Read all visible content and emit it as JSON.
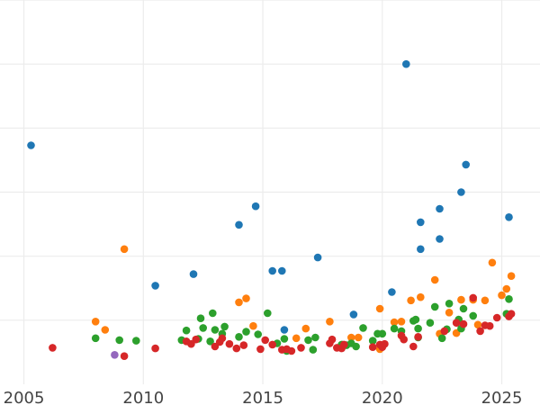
{
  "colors": {
    "blue": "#1f77b4",
    "orange": "#ff7f0e",
    "green": "#2ca02c",
    "red": "#d62728",
    "purple": "#9467bd",
    "grid": "#ececec",
    "tick_text": "#444444"
  },
  "chart_data": {
    "type": "scatter",
    "title": "",
    "xlabel": "",
    "ylabel": "",
    "xlim": [
      2004.0,
      2026.6
    ],
    "ylim": [
      0,
      6
    ],
    "x_ticks": [
      2005,
      2010,
      2015,
      2020,
      2025
    ],
    "x_tick_labels": [
      "2005",
      "2010",
      "2015",
      "2020",
      "2025"
    ],
    "y_ticks": [
      1,
      2,
      3,
      4,
      5,
      6
    ],
    "y_tick_labels": [],
    "grid": true,
    "legend": "none",
    "series": [
      {
        "color": "blue",
        "points": [
          [
            2005.3,
            3.73
          ],
          [
            2010.5,
            1.54
          ],
          [
            2012.1,
            1.72
          ],
          [
            2014.0,
            2.49
          ],
          [
            2014.7,
            2.78
          ],
          [
            2015.4,
            1.77
          ],
          [
            2015.8,
            1.77
          ],
          [
            2015.9,
            0.85
          ],
          [
            2017.3,
            1.98
          ],
          [
            2018.8,
            1.09
          ],
          [
            2020.4,
            1.44
          ],
          [
            2021.0,
            5.0
          ],
          [
            2021.6,
            2.11
          ],
          [
            2021.6,
            2.53
          ],
          [
            2022.4,
            2.27
          ],
          [
            2022.4,
            2.74
          ],
          [
            2023.3,
            3.0
          ],
          [
            2023.5,
            3.43
          ],
          [
            2025.3,
            2.61
          ]
        ]
      },
      {
        "color": "orange",
        "points": [
          [
            2008.0,
            0.98
          ],
          [
            2008.4,
            0.85
          ],
          [
            2009.2,
            2.11
          ],
          [
            2014.0,
            1.28
          ],
          [
            2014.3,
            1.34
          ],
          [
            2014.6,
            0.91
          ],
          [
            2016.4,
            0.72
          ],
          [
            2016.8,
            0.87
          ],
          [
            2017.8,
            0.98
          ],
          [
            2018.7,
            0.73
          ],
          [
            2019.0,
            0.73
          ],
          [
            2019.9,
            1.18
          ],
          [
            2020.5,
            0.97
          ],
          [
            2020.8,
            0.98
          ],
          [
            2021.2,
            1.31
          ],
          [
            2021.6,
            1.36
          ],
          [
            2022.2,
            1.63
          ],
          [
            2022.4,
            0.79
          ],
          [
            2022.8,
            1.12
          ],
          [
            2023.1,
            0.8
          ],
          [
            2023.3,
            1.32
          ],
          [
            2023.8,
            1.32
          ],
          [
            2024.0,
            0.93
          ],
          [
            2024.3,
            1.31
          ],
          [
            2024.6,
            1.9
          ],
          [
            2025.0,
            1.39
          ],
          [
            2025.2,
            1.49
          ],
          [
            2025.4,
            1.69
          ],
          [
            2019.9,
            0.55
          ]
        ]
      },
      {
        "color": "green",
        "points": [
          [
            2008.0,
            0.72
          ],
          [
            2009.0,
            0.69
          ],
          [
            2009.7,
            0.68
          ],
          [
            2011.6,
            0.69
          ],
          [
            2011.8,
            0.84
          ],
          [
            2012.3,
            0.71
          ],
          [
            2012.4,
            1.03
          ],
          [
            2012.5,
            0.88
          ],
          [
            2012.8,
            0.67
          ],
          [
            2012.9,
            1.11
          ],
          [
            2013.0,
            0.85
          ],
          [
            2013.3,
            0.79
          ],
          [
            2013.4,
            0.9
          ],
          [
            2014.0,
            0.74
          ],
          [
            2014.3,
            0.82
          ],
          [
            2014.8,
            0.78
          ],
          [
            2015.2,
            1.11
          ],
          [
            2015.6,
            0.64
          ],
          [
            2015.9,
            0.71
          ],
          [
            2016.0,
            0.52
          ],
          [
            2016.9,
            0.69
          ],
          [
            2017.2,
            0.73
          ],
          [
            2017.1,
            0.54
          ],
          [
            2018.3,
            0.62
          ],
          [
            2018.5,
            0.61
          ],
          [
            2018.7,
            0.64
          ],
          [
            2018.9,
            0.59
          ],
          [
            2019.2,
            0.88
          ],
          [
            2019.6,
            0.68
          ],
          [
            2019.8,
            0.79
          ],
          [
            2020.0,
            0.79
          ],
          [
            2020.5,
            0.87
          ],
          [
            2020.8,
            0.83
          ],
          [
            2021.3,
            0.99
          ],
          [
            2021.4,
            1.01
          ],
          [
            2021.5,
            0.87
          ],
          [
            2021.5,
            0.73
          ],
          [
            2022.0,
            0.96
          ],
          [
            2022.2,
            1.21
          ],
          [
            2022.5,
            0.72
          ],
          [
            2022.7,
            0.86
          ],
          [
            2022.8,
            1.26
          ],
          [
            2023.2,
            1.01
          ],
          [
            2023.3,
            0.87
          ],
          [
            2023.4,
            1.18
          ],
          [
            2023.8,
            1.07
          ],
          [
            2025.2,
            1.1
          ],
          [
            2025.3,
            1.33
          ]
        ]
      },
      {
        "color": "red",
        "points": [
          [
            2006.2,
            0.57
          ],
          [
            2009.2,
            0.44
          ],
          [
            2010.5,
            0.56
          ],
          [
            2011.8,
            0.67
          ],
          [
            2012.0,
            0.63
          ],
          [
            2012.2,
            0.7
          ],
          [
            2013.0,
            0.59
          ],
          [
            2013.2,
            0.66
          ],
          [
            2013.3,
            0.72
          ],
          [
            2013.6,
            0.63
          ],
          [
            2013.9,
            0.56
          ],
          [
            2014.2,
            0.61
          ],
          [
            2014.9,
            0.55
          ],
          [
            2015.1,
            0.69
          ],
          [
            2015.4,
            0.62
          ],
          [
            2015.8,
            0.54
          ],
          [
            2016.0,
            0.55
          ],
          [
            2016.2,
            0.52
          ],
          [
            2016.6,
            0.57
          ],
          [
            2017.8,
            0.64
          ],
          [
            2017.9,
            0.7
          ],
          [
            2018.1,
            0.57
          ],
          [
            2018.3,
            0.56
          ],
          [
            2018.4,
            0.62
          ],
          [
            2019.6,
            0.58
          ],
          [
            2019.9,
            0.62
          ],
          [
            2020.0,
            0.58
          ],
          [
            2020.1,
            0.63
          ],
          [
            2020.8,
            0.76
          ],
          [
            2020.9,
            0.7
          ],
          [
            2021.3,
            0.59
          ],
          [
            2021.5,
            0.74
          ],
          [
            2022.6,
            0.83
          ],
          [
            2023.1,
            0.96
          ],
          [
            2023.4,
            0.94
          ],
          [
            2023.8,
            1.35
          ],
          [
            2024.1,
            0.83
          ],
          [
            2024.3,
            0.92
          ],
          [
            2024.5,
            0.91
          ],
          [
            2024.8,
            1.04
          ],
          [
            2025.3,
            1.06
          ],
          [
            2025.4,
            1.1
          ]
        ]
      },
      {
        "color": "purple",
        "points": [
          [
            2008.8,
            0.46
          ]
        ]
      }
    ]
  }
}
